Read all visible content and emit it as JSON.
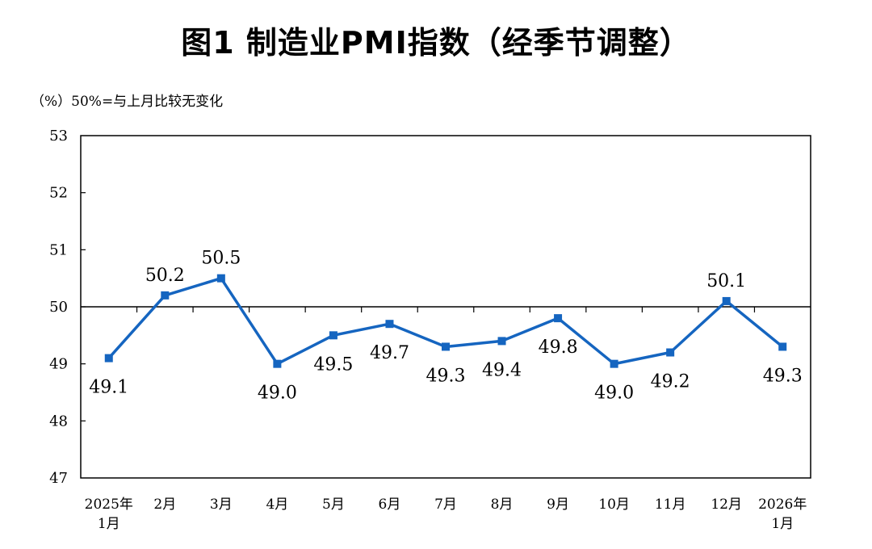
{
  "page": {
    "title": "图1  制造业PMI指数（经季节调整）",
    "unit_note": "（%）50%=与上月比较无变化"
  },
  "chart_data": {
    "type": "line",
    "categories": [
      "2025年\n1月",
      "2月",
      "3月",
      "4月",
      "5月",
      "6月",
      "7月",
      "8月",
      "9月",
      "10月",
      "11月",
      "12月",
      "2026年\n1月"
    ],
    "values": [
      49.1,
      50.2,
      50.5,
      49.0,
      49.5,
      49.7,
      49.3,
      49.4,
      49.8,
      49.0,
      49.2,
      50.1,
      49.3
    ],
    "data_labels": [
      "49.1",
      "50.2",
      "50.5",
      "49.0",
      "49.5",
      "49.7",
      "49.3",
      "49.4",
      "49.8",
      "49.0",
      "49.2",
      "50.1",
      "49.3"
    ],
    "label_position": [
      "below",
      "above",
      "above",
      "below",
      "below",
      "below",
      "below",
      "below",
      "below",
      "below",
      "below",
      "above",
      "below"
    ],
    "ylim": [
      47,
      53
    ],
    "yticks": [
      "47",
      "48",
      "49",
      "50",
      "51",
      "52",
      "53"
    ],
    "reference_line": 50,
    "line_color": "#1565c0",
    "marker": "square",
    "grid": false
  }
}
